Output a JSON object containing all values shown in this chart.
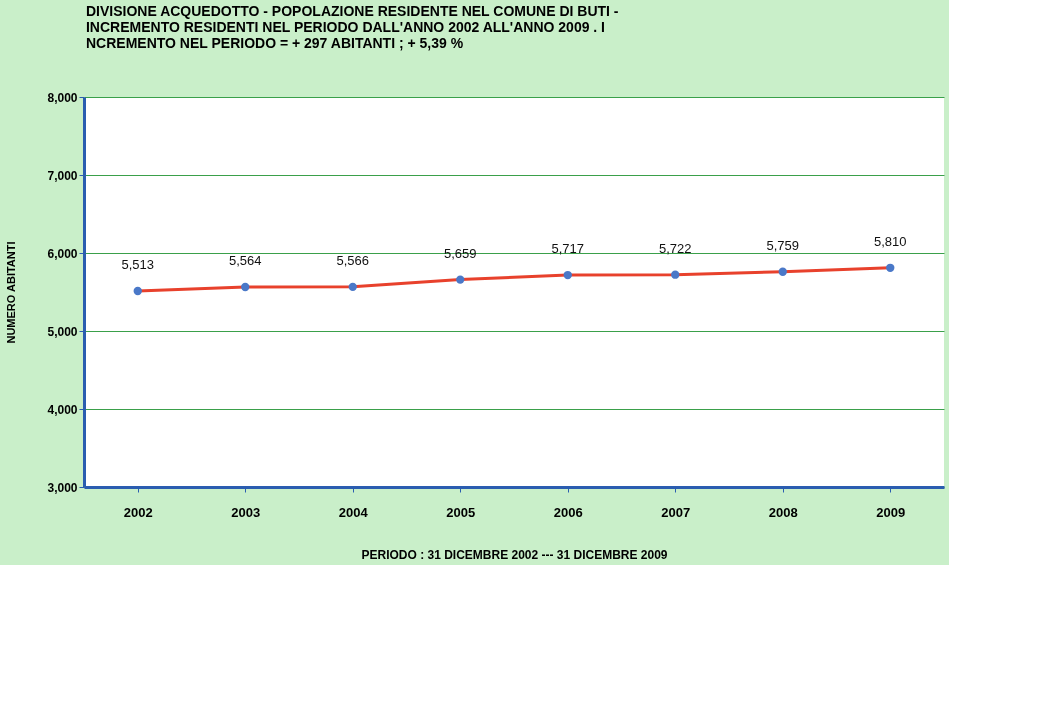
{
  "chart_data": {
    "type": "line",
    "title": "DIVISIONE ACQUEDOTTO - POPOLAZIONE RESIDENTE NEL COMUNE DI BUTI -\nINCREMENTO RESIDENTI NEL PERIODO DALL'ANNO 2002 ALL'ANNO 2009 . I\nNCREMENTO NEL PERIODO = + 297 ABITANTI ; + 5,39 %",
    "xlabel": "PERIODO : 31 DICEMBRE 2002 --- 31 DICEMBRE 2009",
    "ylabel": "NUMERO ABITANTI",
    "categories": [
      "2002",
      "2003",
      "2004",
      "2005",
      "2006",
      "2007",
      "2008",
      "2009"
    ],
    "series": [
      {
        "color": "#e8412c",
        "values": [
          5513,
          5564,
          5566,
          5659,
          5717,
          5722,
          5759,
          5810
        ],
        "value_labels": [
          "5,513",
          "5,564",
          "5,566",
          "5,659",
          "5,717",
          "5,722",
          "5,759",
          "5,810"
        ]
      }
    ],
    "ylim": [
      3000,
      8000
    ],
    "yticks": [
      {
        "value": 3000,
        "label": "3,000"
      },
      {
        "value": 4000,
        "label": "4,000"
      },
      {
        "value": 5000,
        "label": "5,000"
      },
      {
        "value": 6000,
        "label": "6,000"
      },
      {
        "value": 7000,
        "label": "7,000"
      },
      {
        "value": 8000,
        "label": "8,000"
      }
    ],
    "grid": "y",
    "marker": "circle",
    "line_style": "solid"
  }
}
